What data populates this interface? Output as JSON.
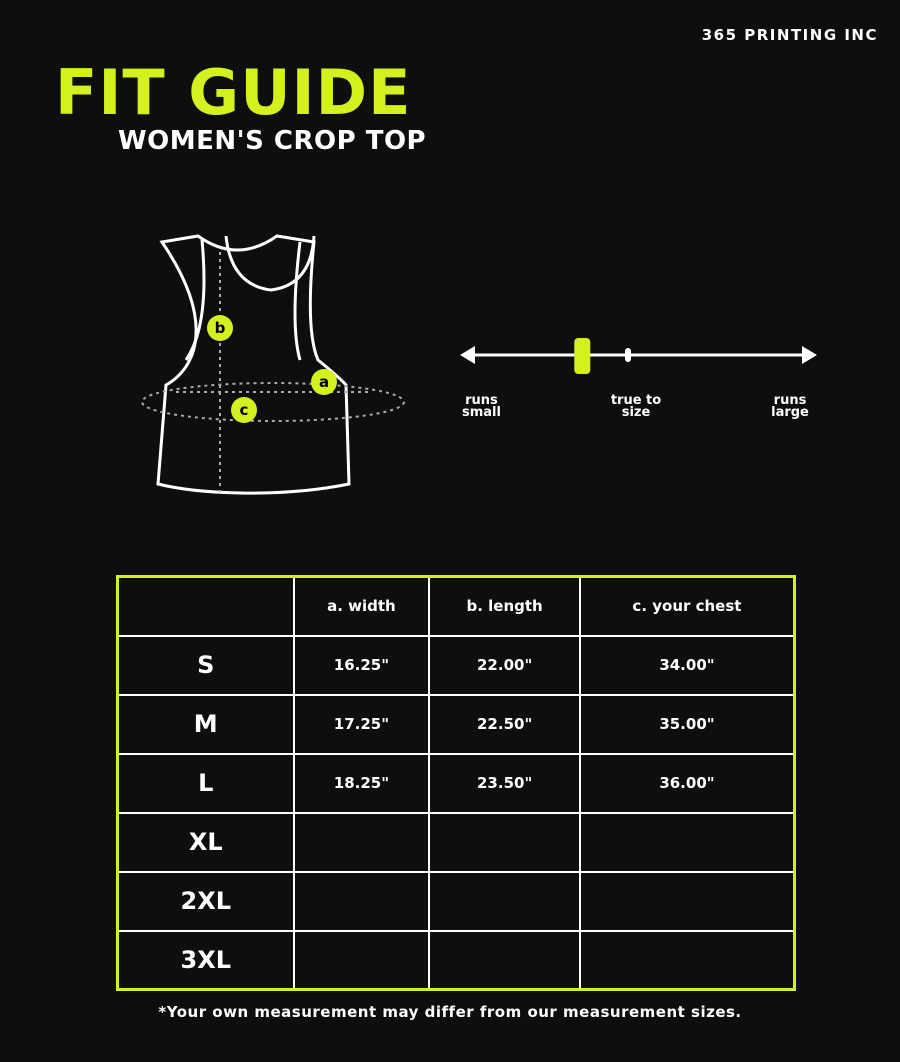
{
  "brand": "365 PRINTING INC",
  "title": "FIT GUIDE",
  "subtitle": "WOMEN'S CROP TOP",
  "diagram": {
    "markers": [
      "a",
      "b",
      "c"
    ]
  },
  "fit_scale": {
    "labels": [
      "runs small",
      "true to size",
      "runs large"
    ],
    "position_fraction": 0.34,
    "accent": "#d4f01e"
  },
  "table": {
    "headers": [
      "",
      "a. width",
      "b. length",
      "c. your chest"
    ],
    "rows": [
      [
        "S",
        "16.25\"",
        "22.00\"",
        "34.00\""
      ],
      [
        "M",
        "17.25\"",
        "22.50\"",
        "35.00\""
      ],
      [
        "L",
        "18.25\"",
        "23.50\"",
        "36.00\""
      ],
      [
        "XL",
        "",
        "",
        ""
      ],
      [
        "2XL",
        "",
        "",
        ""
      ],
      [
        "3XL",
        "",
        "",
        ""
      ]
    ]
  },
  "note": "*Your own measurement may differ from our measurement sizes."
}
